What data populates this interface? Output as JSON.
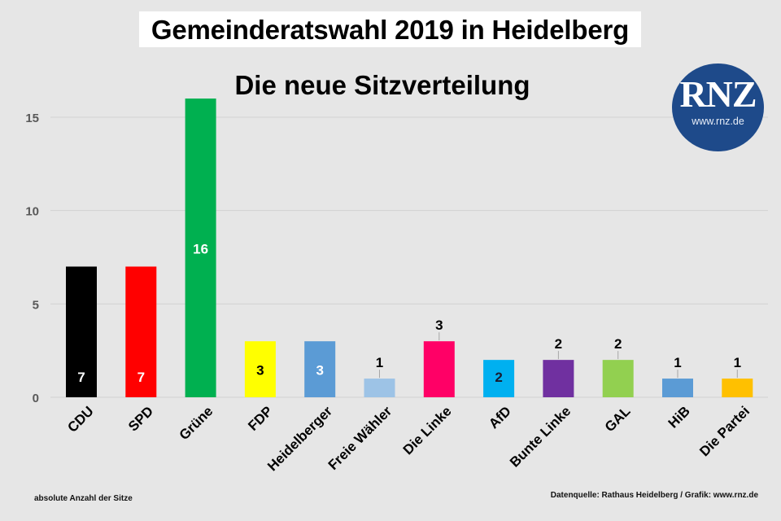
{
  "title": "Gemeinderatswahl 2019 in Heidelberg",
  "subtitle": "Die neue Sitzverteilung",
  "logo": {
    "text": "RNZ",
    "url_text": "www.rnz.de",
    "color": "#1e4a8a"
  },
  "footnotes": {
    "left": "absolute Anzahl der Sitze",
    "right": "Datenquelle: Rathaus Heidelberg / Grafik: www.rnz.de"
  },
  "chart_data": {
    "type": "bar",
    "title": "Gemeinderatswahl 2019 in Heidelberg",
    "subtitle": "Die neue Sitzverteilung",
    "xlabel": "",
    "ylabel": "absolute Anzahl der Sitze",
    "ylim": [
      0,
      16
    ],
    "yticks": [
      0,
      5,
      10,
      15
    ],
    "grid": true,
    "categories": [
      "CDU",
      "SPD",
      "Grüne",
      "FDP",
      "Heidelberger",
      "Freie Wähler",
      "Die Linke",
      "AfD",
      "Bunte Linke",
      "GAL",
      "HiB",
      "Die Partei"
    ],
    "values": [
      7,
      7,
      16,
      3,
      3,
      1,
      3,
      2,
      2,
      2,
      1,
      1
    ],
    "colors": [
      "#000000",
      "#ff0000",
      "#00b050",
      "#ffff00",
      "#5b9bd5",
      "#9dc3e6",
      "#ff0066",
      "#00b0f0",
      "#7030a0",
      "#92d050",
      "#5b9bd5",
      "#ffc000"
    ],
    "label_positions": [
      "inside-bottom",
      "inside-bottom",
      "inside-center",
      "inside-center",
      "inside-center",
      "above",
      "above",
      "inside-bottom",
      "above",
      "above",
      "above",
      "above"
    ],
    "label_colors": [
      "#ffffff",
      "#ffffff",
      "#ffffff",
      "#000000",
      "#ffffff",
      "#000000",
      "#000000",
      "#1a1a2e",
      "#000000",
      "#000000",
      "#000000",
      "#000000"
    ]
  }
}
